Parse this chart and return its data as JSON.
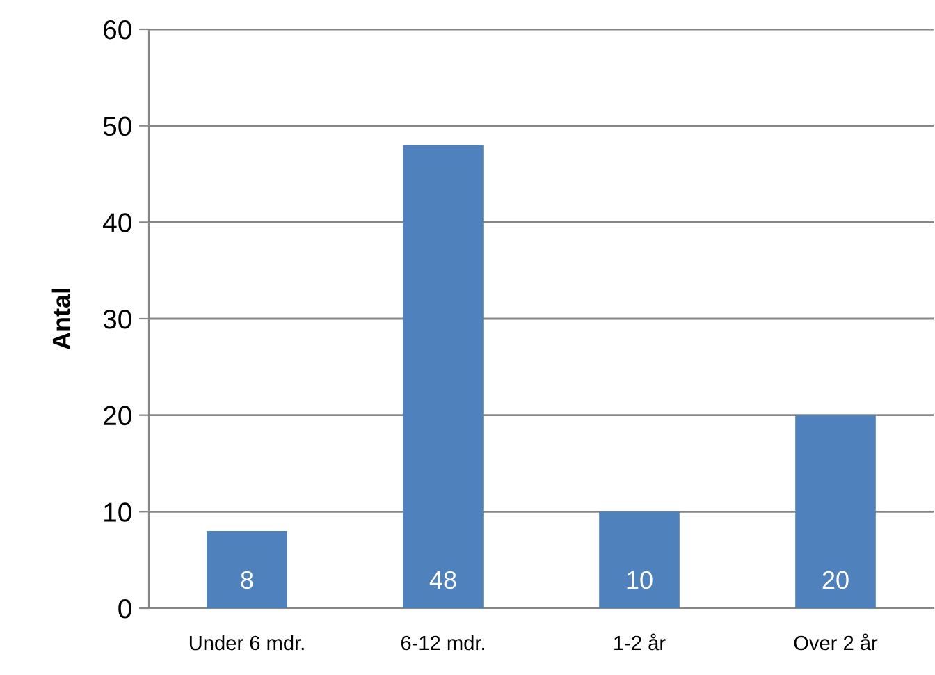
{
  "chart_data": {
    "type": "bar",
    "ylabel": "Antal",
    "categories": [
      "Under 6 mdr.",
      "6-12 mdr.",
      "1-2 år",
      "Over 2 år"
    ],
    "values": [
      8,
      48,
      10,
      20
    ],
    "color": "#4f81bd",
    "ylim": [
      0,
      60
    ],
    "yticks": [
      0,
      10,
      20,
      30,
      40,
      50,
      60
    ],
    "grid": "y",
    "data_labels": true,
    "legend": false
  }
}
